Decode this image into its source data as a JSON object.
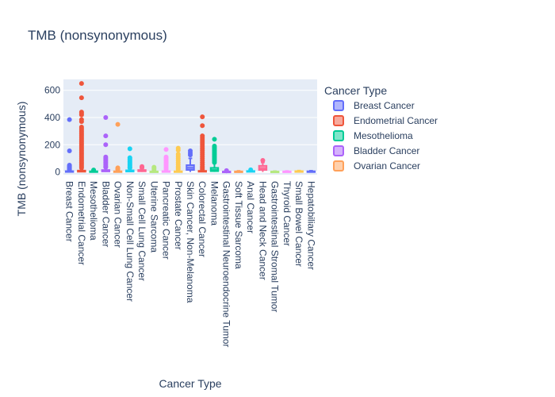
{
  "chart_data": {
    "type": "box",
    "title": "TMB (nonsynonymous)",
    "xlabel": "Cancer Type",
    "ylabel": "TMB (nonsynonymous)",
    "ylim": [
      -20,
      680
    ],
    "yticks": [
      0,
      200,
      400,
      600
    ],
    "legend_title": "Cancer Type",
    "legend_position": "right",
    "background": "#e5ecf6",
    "categories": [
      "Breast Cancer",
      "Endometrial Cancer",
      "Mesothelioma",
      "Bladder Cancer",
      "Ovarian Cancer",
      "Non-Small Cell Lung Cancer",
      "Small Cell Lung Cancer",
      "Uterine Sarcoma",
      "Pancreatic Cancer",
      "Prostate Cancer",
      "Skin Cancer, Non-Melanoma",
      "Colorectal Cancer",
      "Melanoma",
      "Gastrointestinal Neuroendocrine Tumor",
      "Soft Tissue Sarcoma",
      "Anal Cancer",
      "Head and Neck Cancer",
      "Gastrointestinal Stromal Tumor",
      "Thyroid Cancer",
      "Small Bowel Cancer",
      "Hepatobiliary Cancer"
    ],
    "series": [
      {
        "name": "Breast Cancer",
        "color": "#636efa",
        "q1": 1,
        "median": 3,
        "q3": 6,
        "lowerfence": 0,
        "upperfence": 12,
        "outliers": [
          385,
          155,
          50,
          45,
          40,
          35,
          30,
          25,
          20,
          15
        ]
      },
      {
        "name": "Endometrial Cancer",
        "color": "#ef553b",
        "q1": 2,
        "median": 5,
        "q3": 10,
        "lowerfence": 0,
        "upperfence": 20,
        "outliers": [
          650,
          545,
          440,
          430,
          420,
          385,
          370,
          330,
          320,
          310,
          300,
          290,
          280,
          270,
          260,
          250,
          240,
          230,
          220,
          210,
          200,
          190,
          180,
          170,
          160,
          150,
          140,
          130,
          120,
          110,
          100,
          90,
          80,
          70,
          60,
          50,
          40,
          30
        ]
      },
      {
        "name": "Mesothelioma",
        "color": "#00cc96",
        "q1": 1,
        "median": 3,
        "q3": 5,
        "lowerfence": 0,
        "upperfence": 10,
        "outliers": [
          14,
          12
        ]
      },
      {
        "name": "Bladder Cancer",
        "color": "#ab63fa",
        "q1": 4,
        "median": 8,
        "q3": 14,
        "lowerfence": 0,
        "upperfence": 30,
        "outliers": [
          400,
          265,
          200,
          110,
          100,
          90,
          80,
          70,
          60,
          50,
          40,
          35
        ]
      },
      {
        "name": "Ovarian Cancer",
        "color": "#ffa15a",
        "q1": 1,
        "median": 3,
        "q3": 5,
        "lowerfence": 0,
        "upperfence": 10,
        "outliers": [
          350,
          30,
          25,
          20,
          15
        ]
      },
      {
        "name": "Non-Small Cell Lung Cancer",
        "color": "#19d3f3",
        "q1": 3,
        "median": 6,
        "q3": 12,
        "lowerfence": 0,
        "upperfence": 25,
        "outliers": [
          170,
          105,
          95,
          85,
          75,
          65,
          55,
          45,
          35,
          30
        ]
      },
      {
        "name": "Small Cell Lung Cancer",
        "color": "#ff6692",
        "q1": 5,
        "median": 9,
        "q3": 14,
        "lowerfence": 0,
        "upperfence": 25,
        "outliers": [
          40,
          35,
          30
        ]
      },
      {
        "name": "Uterine Sarcoma",
        "color": "#b6e880",
        "q1": 1,
        "median": 2,
        "q3": 4,
        "lowerfence": 0,
        "upperfence": 8,
        "outliers": [
          35,
          25,
          15
        ]
      },
      {
        "name": "Pancreatic Cancer",
        "color": "#ff97ff",
        "q1": 1,
        "median": 3,
        "q3": 6,
        "lowerfence": 0,
        "upperfence": 12,
        "outliers": [
          165,
          110,
          100,
          90,
          80,
          70,
          60,
          50,
          40,
          30,
          20
        ]
      },
      {
        "name": "Prostate Cancer",
        "color": "#fecb52",
        "q1": 1,
        "median": 3,
        "q3": 5,
        "lowerfence": 0,
        "upperfence": 10,
        "outliers": [
          175,
          160,
          130,
          115,
          100,
          85,
          70,
          55,
          40,
          30,
          20
        ]
      },
      {
        "name": "Skin Cancer, Non-Melanoma",
        "color": "#636efa",
        "q1": 15,
        "median": 30,
        "q3": 50,
        "lowerfence": 0,
        "upperfence": 100,
        "outliers": [
          155,
          140,
          125
        ]
      },
      {
        "name": "Colorectal Cancer",
        "color": "#ef553b",
        "q1": 2,
        "median": 4,
        "q3": 8,
        "lowerfence": 0,
        "upperfence": 16,
        "outliers": [
          405,
          340,
          265,
          250,
          235,
          220,
          205,
          190,
          175,
          160,
          145,
          130,
          115,
          100,
          85,
          70,
          55,
          40,
          30,
          20
        ]
      },
      {
        "name": "Melanoma",
        "color": "#00cc96",
        "q1": 6,
        "median": 14,
        "q3": 30,
        "lowerfence": 0,
        "upperfence": 65,
        "outliers": [
          240,
          190,
          180,
          170,
          160,
          150,
          140,
          130,
          120,
          110,
          100,
          90,
          80,
          70
        ]
      },
      {
        "name": "Gastrointestinal Neuroendocrine Tumor",
        "color": "#ab63fa",
        "q1": 1,
        "median": 2,
        "q3": 3,
        "lowerfence": 0,
        "upperfence": 6,
        "outliers": [
          10,
          8
        ]
      },
      {
        "name": "Soft Tissue Sarcoma",
        "color": "#ffa15a",
        "q1": 1,
        "median": 2,
        "q3": 4,
        "lowerfence": 0,
        "upperfence": 8,
        "outliers": []
      },
      {
        "name": "Anal Cancer",
        "color": "#19d3f3",
        "q1": 2,
        "median": 4,
        "q3": 7,
        "lowerfence": 0,
        "upperfence": 12,
        "outliers": [
          16
        ]
      },
      {
        "name": "Head and Neck Cancer",
        "color": "#ff6692",
        "q1": 15,
        "median": 28,
        "q3": 45,
        "lowerfence": 0,
        "upperfence": 70,
        "outliers": [
          85
        ]
      },
      {
        "name": "Gastrointestinal Stromal Tumor",
        "color": "#b6e880",
        "q1": 1,
        "median": 2,
        "q3": 3,
        "lowerfence": 0,
        "upperfence": 6,
        "outliers": []
      },
      {
        "name": "Thyroid Cancer",
        "color": "#ff97ff",
        "q1": 1,
        "median": 2,
        "q3": 4,
        "lowerfence": 0,
        "upperfence": 7,
        "outliers": []
      },
      {
        "name": "Small Bowel Cancer",
        "color": "#fecb52",
        "q1": 1,
        "median": 3,
        "q3": 6,
        "lowerfence": 0,
        "upperfence": 10,
        "outliers": []
      },
      {
        "name": "Hepatobiliary Cancer",
        "color": "#636efa",
        "q1": 1,
        "median": 3,
        "q3": 5,
        "lowerfence": 0,
        "upperfence": 9,
        "outliers": []
      }
    ],
    "legend_visible_entries": 5
  }
}
